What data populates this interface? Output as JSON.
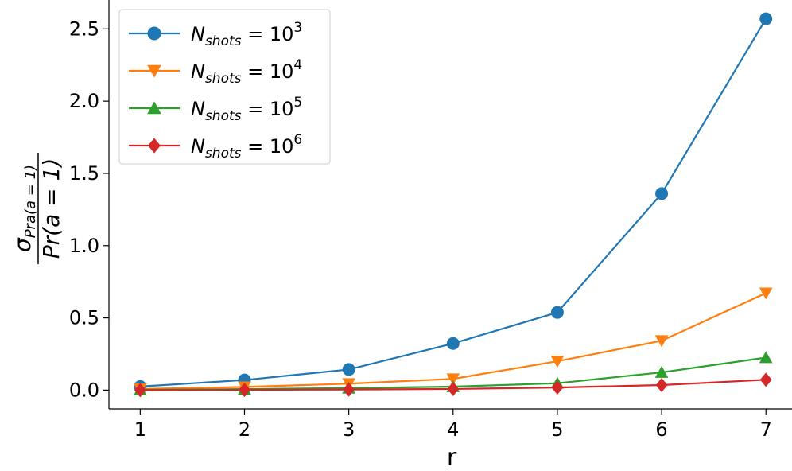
{
  "chart_data": {
    "type": "line",
    "title": "",
    "xlabel": "r",
    "ylabel": {
      "numerator_base": "σ",
      "numerator_sub": "Pra(a = 1)",
      "denominator": "Pr(a = 1)"
    },
    "x": [
      1,
      2,
      3,
      4,
      5,
      6,
      7
    ],
    "xlim": [
      0.7,
      7.25
    ],
    "ylim": [
      -0.13,
      2.7
    ],
    "xticks": [
      1,
      2,
      3,
      4,
      5,
      6,
      7
    ],
    "yticks": [
      0.0,
      0.5,
      1.0,
      1.5,
      2.0,
      2.5
    ],
    "ytick_labels": [
      "0.0",
      "0.5",
      "1.0",
      "1.5",
      "2.0",
      "2.5"
    ],
    "grid": false,
    "legend_position": "top-left",
    "series": [
      {
        "legend": {
          "base": "N",
          "sub": "shots",
          "eq": " = 10",
          "exp": "3"
        },
        "color": "#1f77b4",
        "marker": "circle",
        "values": [
          0.025,
          0.07,
          0.143,
          0.323,
          0.538,
          1.36,
          2.57
        ]
      },
      {
        "legend": {
          "base": "N",
          "sub": "shots",
          "eq": " = 10",
          "exp": "4"
        },
        "color": "#ff7f0e",
        "marker": "triangle-down",
        "values": [
          0.008,
          0.022,
          0.045,
          0.078,
          0.2,
          0.342,
          0.672
        ]
      },
      {
        "legend": {
          "base": "N",
          "sub": "shots",
          "eq": " = 10",
          "exp": "5"
        },
        "color": "#2ca02c",
        "marker": "triangle-up",
        "values": [
          0.002,
          0.007,
          0.014,
          0.024,
          0.048,
          0.123,
          0.225
        ]
      },
      {
        "legend": {
          "base": "N",
          "sub": "shots",
          "eq": " = 10",
          "exp": "6"
        },
        "color": "#d62728",
        "marker": "diamond",
        "values": [
          0.0,
          0.002,
          0.004,
          0.008,
          0.018,
          0.035,
          0.072
        ]
      }
    ]
  }
}
